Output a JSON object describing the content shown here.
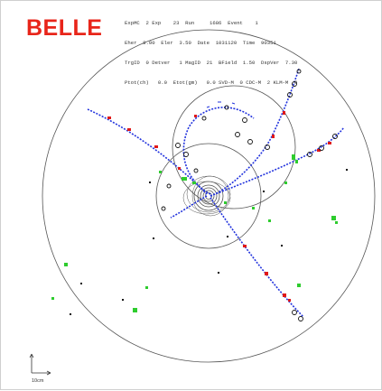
{
  "logo": {
    "text": "BELLE"
  },
  "header": {
    "lines": [
      "ExpMC  2 Exp    23  Run     1686  Event    1",
      "Eher  8.00  Eler  3.50  Date  1031120  Time  90351",
      "TrgID  0 Detver   1 MagID  21  BField  1.50  DspVer  7.30",
      "Ptot(ch)   0.0  Etot(gm)   0.0 SVD-M  0 CDC-M  2 KLM-M  0"
    ]
  },
  "scale": {
    "label": "10cm"
  },
  "colors": {
    "logo": "#e8251a",
    "track": "#2233dd",
    "hit_red": "#e01818",
    "cluster": "#2ecc2e",
    "outline": "#555555"
  }
}
